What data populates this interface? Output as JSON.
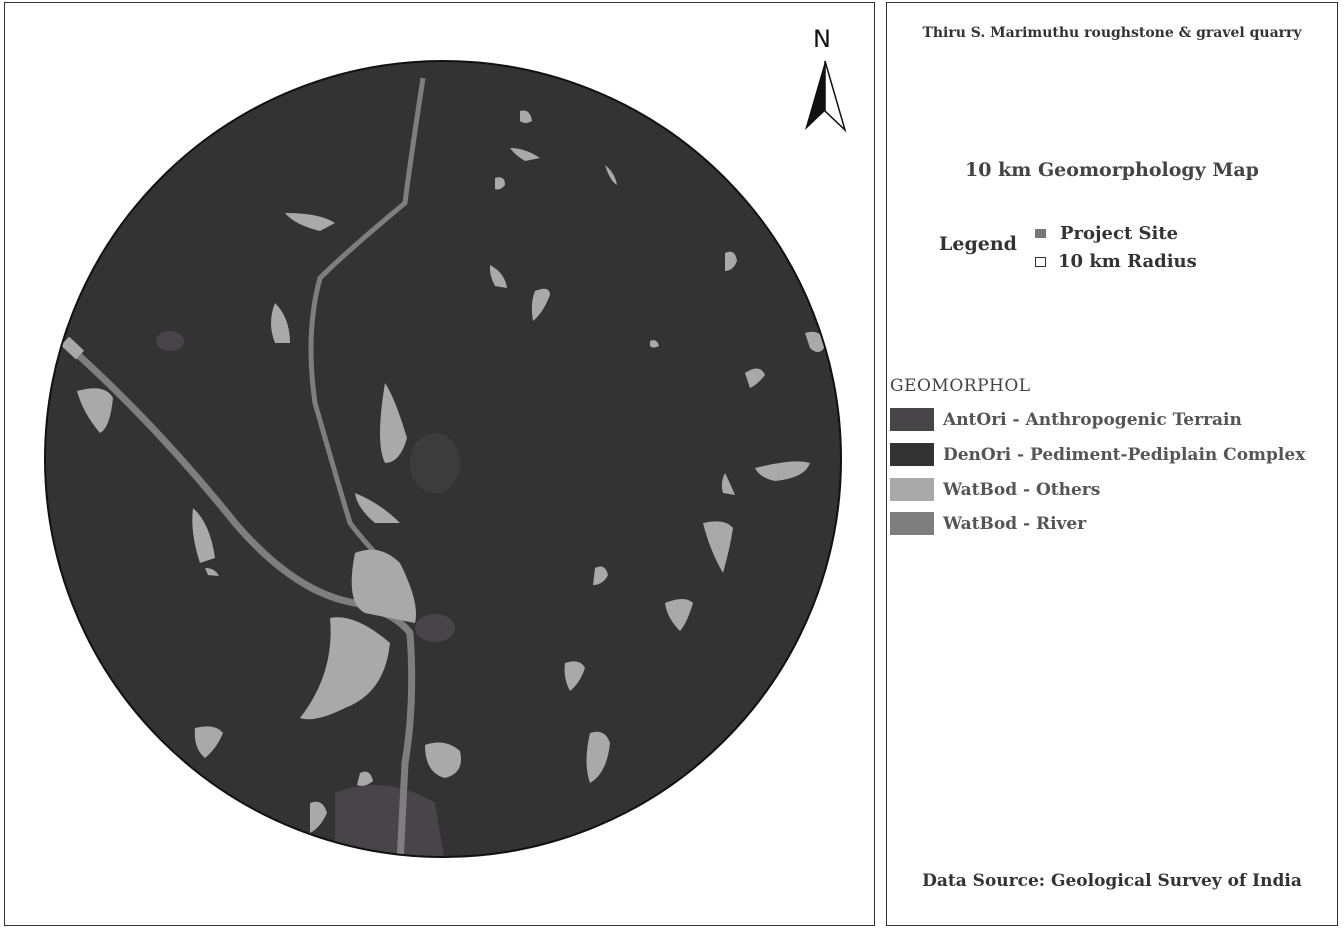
{
  "map": {
    "north": "N",
    "colors": {
      "antropogenic": "#474547",
      "pediment": "#343334",
      "water_others": "#a9a9a9",
      "water_river": "#7e7e7e"
    }
  },
  "legend_panel": {
    "title": "Thiru S. Marimuthu roughstone & gravel quarry",
    "map_title": "10 km Geomorphology Map",
    "legend_label": "Legend",
    "project_site": "Project Site",
    "radius": "10 km Radius",
    "geomorph_heading": "GEOMORPHOL",
    "classes": [
      {
        "label": "AntOri - Anthropogenic Terrain",
        "color": "#474547"
      },
      {
        "label": "DenOri - Pediment-Pediplain Complex",
        "color": "#343334"
      },
      {
        "label": "WatBod - Others",
        "color": "#a9a9a9"
      },
      {
        "label": "WatBod - River",
        "color": "#7e7e7e"
      }
    ],
    "source": "Data Source: Geological Survey of India"
  }
}
